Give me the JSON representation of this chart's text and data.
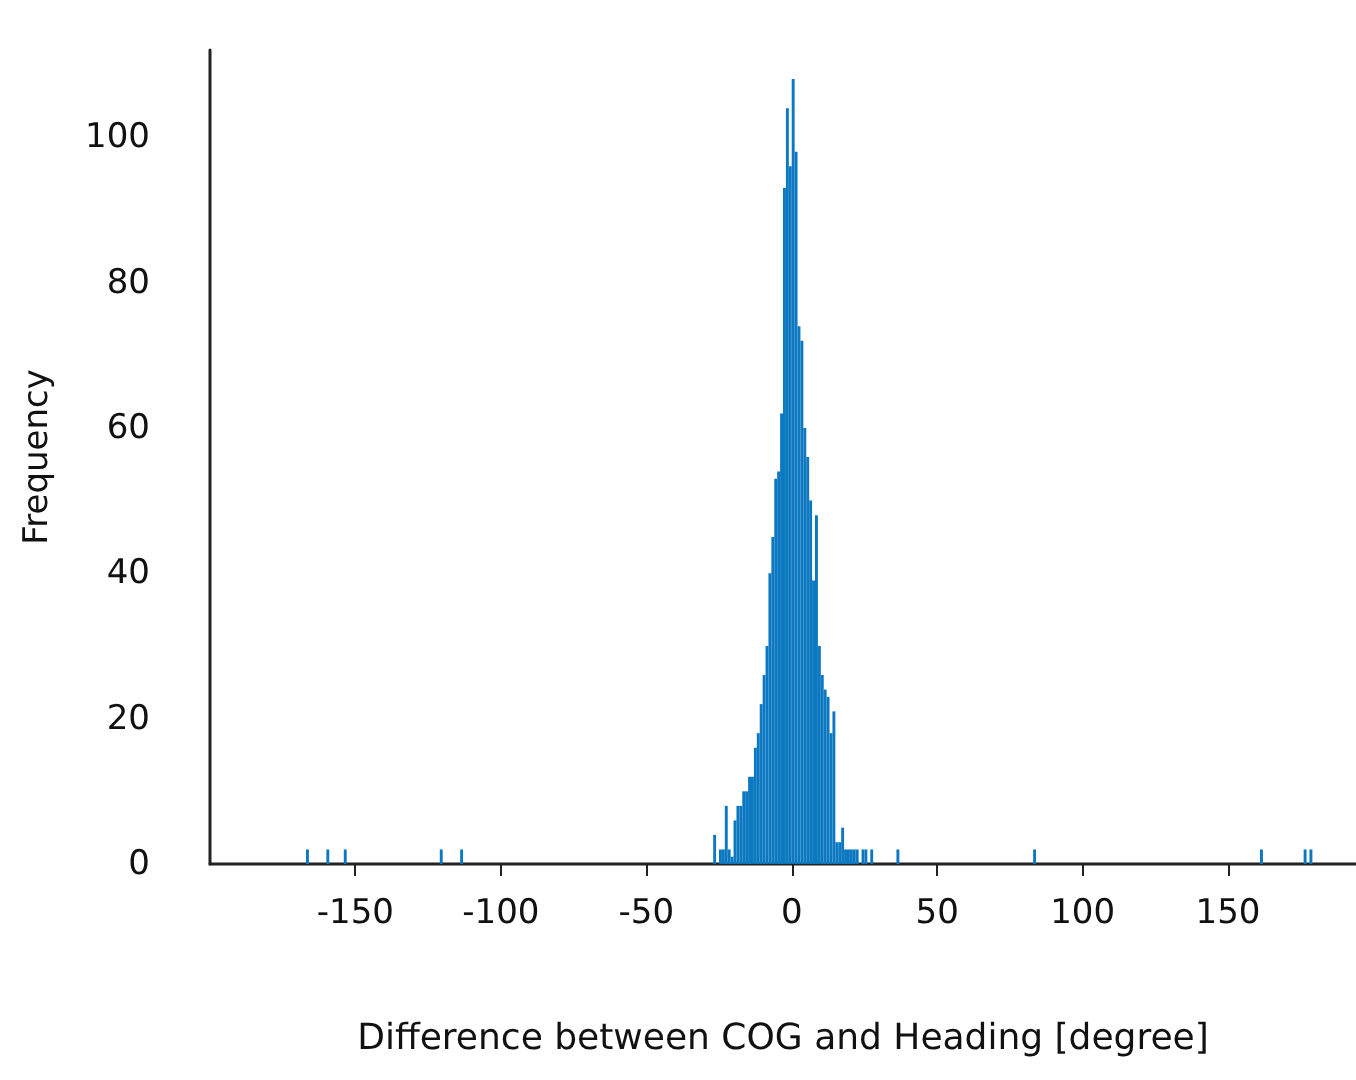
{
  "chart_data": {
    "type": "histogram",
    "xlabel": "Difference between COG and Heading [degree]",
    "ylabel": "Frequency",
    "color": "#0b78c1",
    "bins": [
      -168,
      -167,
      -166,
      -165,
      -164,
      -163,
      -162,
      -161,
      -160,
      -159,
      -158,
      -157,
      -156,
      -155,
      -154,
      -153,
      -152,
      -151,
      -150,
      -149,
      -148,
      -147,
      -146,
      -145,
      -144,
      -143,
      -142,
      -141,
      -140,
      -139,
      -138,
      -137,
      -136,
      -135,
      -134,
      -133,
      -132,
      -131,
      -130,
      -129,
      -128,
      -127,
      -126,
      -125,
      -124,
      -123,
      -122,
      -121,
      -120,
      -119,
      -118,
      -117,
      -116,
      -115,
      -114,
      -113,
      -112,
      -111,
      -110,
      -109,
      -108,
      -107,
      -106,
      -105,
      -104,
      -103,
      -102,
      -101,
      -100,
      -99,
      -98,
      -97,
      -96,
      -95,
      -94,
      -93,
      -92,
      -91,
      -90,
      -89,
      -88,
      -87,
      -86,
      -85,
      -84,
      -83,
      -82,
      -81,
      -80,
      -79,
      -78,
      -77,
      -76,
      -75,
      -74,
      -73,
      -72,
      -71,
      -70,
      -69,
      -68,
      -67,
      -66,
      -65,
      -64,
      -63,
      -62,
      -61,
      -60,
      -59,
      -58,
      -57,
      -56,
      -55,
      -54,
      -53,
      -52,
      -51,
      -50,
      -49,
      -48,
      -47,
      -46,
      -45,
      -44,
      -43,
      -42,
      -41,
      -40,
      -39,
      -38,
      -37,
      -36,
      -35,
      -34,
      -33,
      -32,
      -31,
      -30,
      -29,
      -28,
      -27,
      -26,
      -25,
      -24,
      -23,
      -22,
      -21,
      -20,
      -19,
      -18,
      -17,
      -16,
      -15,
      -14,
      -13,
      -12,
      -11,
      -10,
      -9,
      -8,
      -7,
      -6,
      -5,
      -4,
      -3,
      -2,
      -1,
      0,
      1,
      2,
      3,
      4,
      5,
      6,
      7,
      8,
      9,
      10,
      11,
      12,
      13,
      14,
      15,
      16,
      17,
      18,
      19,
      20,
      21,
      22,
      23,
      24,
      25,
      26,
      27,
      28,
      29,
      30,
      31,
      32,
      33,
      34,
      35,
      36,
      37,
      38,
      39,
      40,
      41,
      42,
      43,
      44,
      45,
      46,
      47,
      48,
      49,
      50,
      51,
      52,
      53,
      54,
      55,
      56,
      57,
      58,
      59,
      60,
      61,
      62,
      63,
      64,
      65,
      66,
      67,
      68,
      69,
      70,
      71,
      72,
      73,
      74,
      75,
      76,
      77,
      78,
      79,
      80,
      81,
      82,
      83,
      84,
      85,
      86,
      87,
      88,
      89,
      90,
      91,
      92,
      93,
      94,
      95,
      96,
      97,
      98,
      99,
      100,
      101,
      102,
      103,
      104,
      105,
      106,
      107,
      108,
      109,
      110,
      111,
      112,
      113,
      114,
      115,
      116,
      117,
      118,
      119,
      120,
      121,
      122,
      123,
      124,
      125,
      126,
      127,
      128,
      129,
      130,
      131,
      132,
      133,
      134,
      135,
      136,
      137,
      138,
      139,
      140,
      141,
      142,
      143,
      144,
      145,
      146,
      147,
      148,
      149,
      150,
      151,
      152,
      153,
      154,
      155,
      156,
      157,
      158,
      159,
      160,
      161,
      162,
      163,
      164,
      165,
      166,
      167,
      168,
      169,
      170,
      171,
      172,
      173,
      174,
      175,
      176,
      177,
      178,
      179,
      180
    ],
    "values": [
      0,
      2,
      0,
      0,
      0,
      0,
      0,
      0,
      2,
      0,
      0,
      0,
      0,
      0,
      2,
      0,
      0,
      0,
      0,
      0,
      0,
      0,
      0,
      0,
      0,
      0,
      0,
      0,
      0,
      0,
      0,
      0,
      0,
      0,
      0,
      0,
      0,
      0,
      0,
      0,
      0,
      0,
      0,
      0,
      0,
      0,
      0,
      2,
      0,
      0,
      0,
      0,
      0,
      0,
      2,
      0,
      0,
      0,
      0,
      0,
      0,
      0,
      0,
      0,
      0,
      0,
      0,
      0,
      0,
      0,
      0,
      0,
      0,
      0,
      0,
      0,
      0,
      0,
      0,
      0,
      0,
      0,
      0,
      0,
      0,
      0,
      0,
      0,
      0,
      0,
      0,
      0,
      0,
      0,
      0,
      0,
      0,
      0,
      0,
      0,
      0,
      0,
      0,
      0,
      0,
      0,
      0,
      0,
      0,
      0,
      0,
      0,
      0,
      0,
      0,
      0,
      0,
      0,
      0,
      0,
      0,
      0,
      0,
      0,
      0,
      0,
      0,
      0,
      0,
      0,
      0,
      0,
      0,
      0,
      0,
      0,
      0,
      0,
      0,
      0,
      0,
      4,
      0,
      2,
      2,
      8,
      2,
      1,
      6,
      8,
      8,
      10,
      10,
      12,
      12,
      16,
      18,
      22,
      26,
      30,
      40,
      45,
      53,
      54,
      62,
      93,
      104,
      96,
      108,
      98,
      74,
      72,
      60,
      56,
      50,
      39,
      48,
      30,
      26,
      24,
      23,
      18,
      21,
      3,
      3,
      5,
      2,
      2,
      2,
      2,
      2,
      0,
      2,
      2,
      0,
      2,
      0,
      0,
      0,
      0,
      0,
      0,
      0,
      0,
      2,
      0,
      0,
      0,
      0,
      0,
      0,
      0,
      0,
      0,
      0,
      0,
      0,
      0,
      0,
      0,
      0,
      0,
      0,
      0,
      0,
      0,
      0,
      0,
      0,
      0,
      0,
      0,
      0,
      0,
      0,
      0,
      0,
      0,
      0,
      0,
      0,
      0,
      0,
      0,
      0,
      0,
      0,
      0,
      0,
      0,
      0,
      2,
      0,
      0,
      0,
      0,
      0,
      0,
      0,
      0,
      0,
      0,
      0,
      0,
      0,
      0,
      0,
      0,
      0,
      0,
      0,
      0,
      0,
      0,
      0,
      0,
      0,
      0,
      0,
      0,
      0,
      0,
      0,
      0,
      0,
      0,
      0,
      0,
      0,
      0,
      0,
      0,
      0,
      0,
      0,
      0,
      0,
      0,
      0,
      0,
      0,
      0,
      0,
      0,
      0,
      0,
      0,
      0,
      0,
      0,
      0,
      0,
      0,
      0,
      0,
      0,
      0,
      0,
      0,
      0,
      0,
      0,
      0,
      0,
      0,
      0,
      0,
      0,
      0,
      2,
      0,
      0,
      0,
      0,
      0,
      0,
      0,
      0,
      0,
      0,
      0,
      0,
      0,
      0,
      2,
      0,
      2,
      0
    ],
    "xlim": [
      -200,
      194
    ],
    "xticks": [
      -150,
      -100,
      -50,
      0,
      50,
      100,
      150
    ],
    "ylim": [
      0,
      112
    ],
    "yticks": [
      0,
      20,
      40,
      60,
      80,
      100
    ],
    "grid": false
  }
}
